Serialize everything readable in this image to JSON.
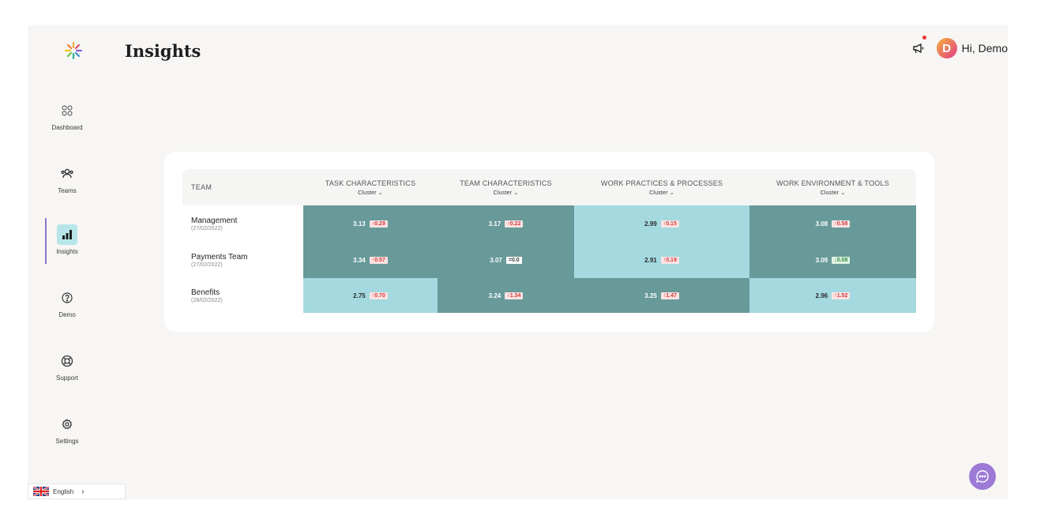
{
  "colors": {
    "dark": "#679a99",
    "light": "#a3d9df",
    "accent": "#8e77c9"
  },
  "page": {
    "title": "Insights"
  },
  "user": {
    "initial": "D",
    "greeting": "Hi, Demo"
  },
  "sidebar": {
    "items": [
      {
        "label": "Dashboard",
        "icon": "grid-icon"
      },
      {
        "label": "Teams",
        "icon": "people-icon"
      },
      {
        "label": "Insights",
        "icon": "bar-chart-icon",
        "active": true
      },
      {
        "label": "Demo",
        "icon": "question-icon"
      },
      {
        "label": "Support",
        "icon": "headset-icon"
      },
      {
        "label": "Settings",
        "icon": "gear-icon"
      }
    ]
  },
  "table": {
    "team_header": "TEAM",
    "columns": [
      {
        "title": "TASK CHARACTERISTICS",
        "sort": "Cluster"
      },
      {
        "title": "TEAM CHARACTERISTICS",
        "sort": "Cluster"
      },
      {
        "title": "WORK PRACTICES & PROCESSES",
        "sort": "Cluster"
      },
      {
        "title": "WORK ENVIRONMENT & TOOLS",
        "sort": "Cluster"
      }
    ],
    "rows": [
      {
        "team": "Management",
        "date": "(27/02/2022)",
        "cells": [
          {
            "value": "3.13",
            "delta": "↑0.29",
            "trend": "up",
            "shade": "dark"
          },
          {
            "value": "3.17",
            "delta": "↑0.22",
            "trend": "up",
            "shade": "dark"
          },
          {
            "value": "2.99",
            "delta": "↑0.15",
            "trend": "up",
            "shade": "light"
          },
          {
            "value": "3.08",
            "delta": "↑0.58",
            "trend": "up",
            "shade": "dark"
          }
        ]
      },
      {
        "team": "Payments Team",
        "date": "(27/02/2022)",
        "cells": [
          {
            "value": "3.34",
            "delta": "↑0.57",
            "trend": "up",
            "shade": "dark"
          },
          {
            "value": "3.07",
            "delta": "=0.0",
            "trend": "eq",
            "shade": "dark"
          },
          {
            "value": "2.91",
            "delta": "↑0.19",
            "trend": "up",
            "shade": "light"
          },
          {
            "value": "3.09",
            "delta": "↓0.08",
            "trend": "down",
            "shade": "dark"
          }
        ]
      },
      {
        "team": "Benefits",
        "date": "(28/02/2022)",
        "cells": [
          {
            "value": "2.75",
            "delta": "↑0.70",
            "trend": "up",
            "shade": "light"
          },
          {
            "value": "3.24",
            "delta": "↑1.34",
            "trend": "up",
            "shade": "dark"
          },
          {
            "value": "3.25",
            "delta": "↑1.47",
            "trend": "up",
            "shade": "dark"
          },
          {
            "value": "2.96",
            "delta": "↑1.52",
            "trend": "up",
            "shade": "light"
          }
        ]
      }
    ]
  },
  "language": {
    "label": "English"
  }
}
